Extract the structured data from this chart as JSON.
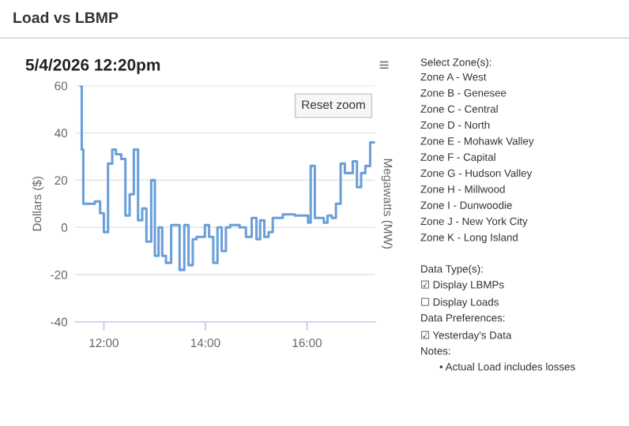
{
  "chart_data": {
    "type": "step",
    "title": "Load vs LBMP",
    "subtitle": "5/4/2026 12:20pm",
    "ylabel": "Dollars ($)",
    "y2label": "Megawatts (MW)",
    "x": [
      11.544,
      11.565,
      11.596,
      11.824,
      11.927,
      12.0,
      12.083,
      12.166,
      12.238,
      12.342,
      12.425,
      12.508,
      12.591,
      12.674,
      12.756,
      12.839,
      12.933,
      13.005,
      13.078,
      13.15,
      13.223,
      13.326,
      13.492,
      13.585,
      13.668,
      13.751,
      13.824,
      13.99,
      14.073,
      14.155,
      14.238,
      14.321,
      14.404,
      14.487,
      14.674,
      14.798,
      14.912,
      15.005,
      15.078,
      15.161,
      15.244,
      15.326,
      15.523,
      15.762,
      16.021,
      16.073,
      16.155,
      16.332,
      16.404,
      16.487,
      16.57,
      16.663,
      16.746,
      16.902,
      16.984,
      17.067,
      17.15,
      17.244,
      17.337
    ],
    "series": [
      {
        "color": "#6a9fd8",
        "values": [
          60,
          33,
          10,
          11,
          6,
          -2,
          27,
          33,
          31,
          29,
          5,
          14,
          33,
          3,
          8,
          -6,
          20,
          -12,
          0,
          -12,
          -15,
          1,
          -18,
          1,
          -16,
          -5,
          -4,
          1,
          -4,
          -15,
          0,
          -10,
          0,
          1,
          0,
          -4,
          4,
          -5,
          3,
          -4,
          -2,
          4,
          5.5,
          5,
          2,
          26,
          4,
          2,
          5,
          4,
          10,
          27,
          23,
          28,
          17,
          23,
          26,
          36,
          36
        ]
      }
    ],
    "xlim": [
      11.44,
      17.34
    ],
    "xticks": [
      {
        "value": 12,
        "label": "12:00"
      },
      {
        "value": 14,
        "label": "14:00"
      },
      {
        "value": 16,
        "label": "16:00"
      }
    ],
    "ylim": [
      -40,
      60
    ],
    "yticks": [
      -40,
      -20,
      0,
      20,
      40,
      60
    ],
    "grid": "y",
    "legend": false,
    "annotations": [
      "≡",
      "Reset zoom",
      "Select Zone(s):",
      "Zone A - West",
      "Zone B - Genesee",
      "Zone C - Central",
      "Zone D - North",
      "Zone E - Mohawk Valley",
      "Zone F - Capital",
      "Zone G - Hudson Valley",
      "Zone H - Millwood",
      "Zone I - Dunwoodie",
      "Zone J - New York City",
      "Zone K - Long Island",
      "Data Type(s):",
      "☑ Display LBMPs",
      "☐ Display Loads",
      "Data Preferences:",
      "☑ Yesterday's Data",
      "Notes:",
      "• Actual Load includes losses"
    ]
  }
}
